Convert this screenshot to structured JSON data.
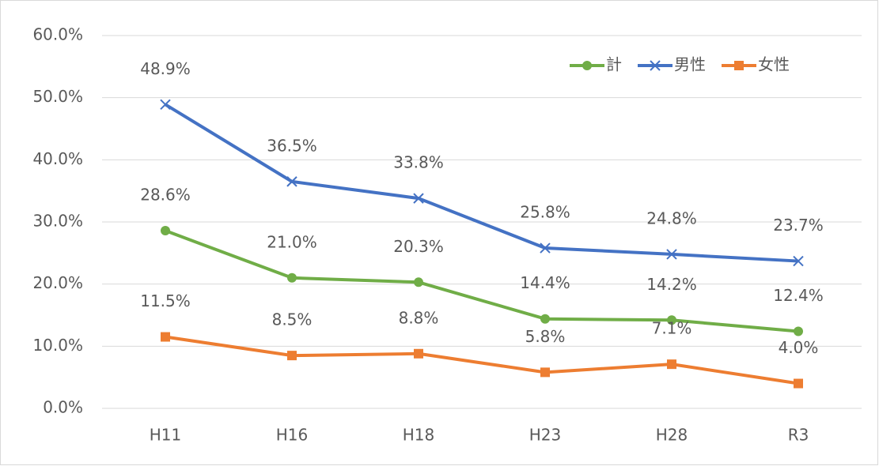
{
  "chart_data": {
    "type": "line",
    "categories": [
      "H11",
      "H16",
      "H18",
      "H23",
      "H28",
      "R3"
    ],
    "series": [
      {
        "name": "計",
        "color": "#70ad47",
        "marker": "circle",
        "values": [
          28.6,
          21.0,
          20.3,
          14.4,
          14.2,
          12.4
        ],
        "value_labels": [
          "28.6%",
          "21.0%",
          "20.3%",
          "14.4%",
          "14.2%",
          "12.4%"
        ]
      },
      {
        "name": "男性",
        "color": "#4472c4",
        "marker": "x",
        "values": [
          48.9,
          36.5,
          33.8,
          25.8,
          24.8,
          23.7
        ],
        "value_labels": [
          "48.9%",
          "36.5%",
          "33.8%",
          "25.8%",
          "24.8%",
          "23.7%"
        ]
      },
      {
        "name": "女性",
        "color": "#ed7d31",
        "marker": "square",
        "values": [
          11.5,
          8.5,
          8.8,
          5.8,
          7.1,
          4.0
        ],
        "value_labels": [
          "11.5%",
          "8.5%",
          "8.8%",
          "5.8%",
          "7.1%",
          "4.0%"
        ]
      }
    ],
    "ylim": [
      0,
      60
    ],
    "yticks": [
      {
        "value": 0,
        "label": "0.0%"
      },
      {
        "value": 10,
        "label": "10.0%"
      },
      {
        "value": 20,
        "label": "20.0%"
      },
      {
        "value": 30,
        "label": "30.0%"
      },
      {
        "value": 40,
        "label": "40.0%"
      },
      {
        "value": 50,
        "label": "50.0%"
      },
      {
        "value": 60,
        "label": "60.0%"
      }
    ],
    "grid": true,
    "legend": "top-right"
  }
}
